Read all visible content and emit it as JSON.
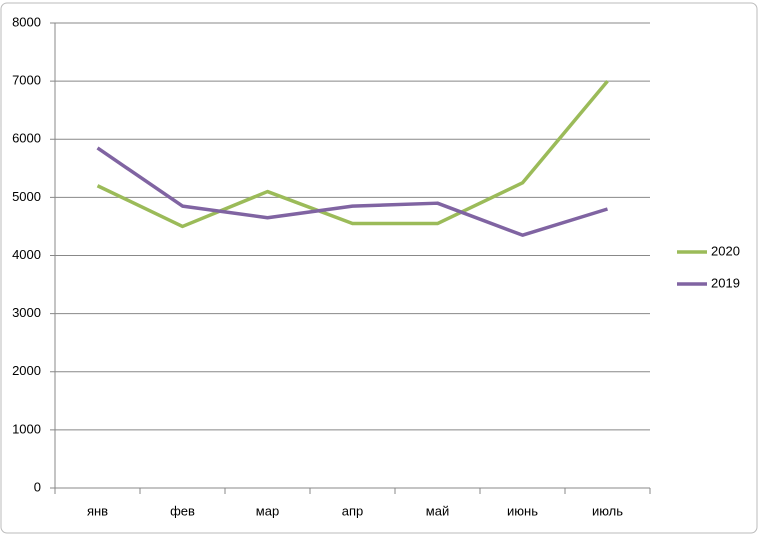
{
  "chart_data": {
    "type": "line",
    "categories": [
      "янв",
      "фев",
      "мар",
      "апр",
      "май",
      "июнь",
      "июль"
    ],
    "series": [
      {
        "name": "2020",
        "color": "#9bbb59",
        "values": [
          5200,
          4500,
          5100,
          4550,
          4550,
          5250,
          7000
        ]
      },
      {
        "name": "2019",
        "color": "#8064a2",
        "values": [
          5850,
          4850,
          4650,
          4850,
          4900,
          4350,
          4800
        ]
      }
    ],
    "ylim": [
      0,
      8000
    ],
    "yticks": [
      0,
      1000,
      2000,
      3000,
      4000,
      5000,
      6000,
      7000,
      8000
    ],
    "grid": true,
    "legend": "right"
  }
}
